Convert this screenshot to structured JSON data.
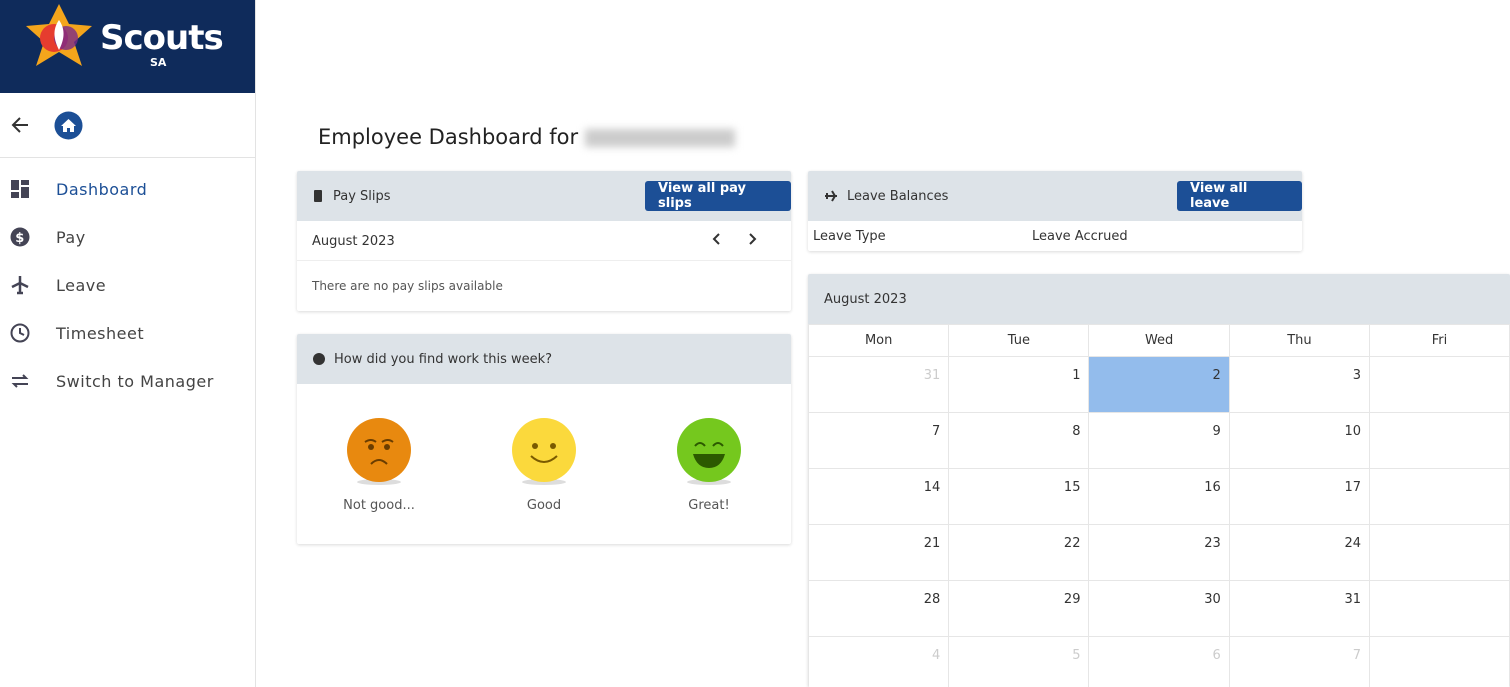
{
  "brand": {
    "name": "Scouts",
    "region": "SA"
  },
  "nav": [
    "Dashboard",
    "Pay",
    "Leave",
    "Timesheet",
    "Switch to Manager"
  ],
  "page": {
    "title": "Employee Dashboard for"
  },
  "pay_slips": {
    "title": "Pay Slips",
    "button": "View all pay slips",
    "month": "August 2023",
    "empty": "There are no pay slips available"
  },
  "mood": {
    "question": "How did you find work this week?",
    "options": [
      "Not good...",
      "Good",
      "Great!"
    ]
  },
  "leave": {
    "title": "Leave Balances",
    "button": "View all leave",
    "columns": [
      "Leave Type",
      "Leave Accrued"
    ]
  },
  "calendar": {
    "month": "August 2023",
    "weekdays": [
      "Mon",
      "Tue",
      "Wed",
      "Thu",
      "Fri"
    ],
    "weeks": [
      [
        31,
        1,
        2,
        3
      ],
      [
        7,
        8,
        9,
        10
      ],
      [
        14,
        15,
        16,
        17
      ],
      [
        21,
        22,
        23,
        24
      ],
      [
        28,
        29,
        30,
        31
      ],
      [
        4,
        5,
        6,
        7
      ]
    ]
  }
}
